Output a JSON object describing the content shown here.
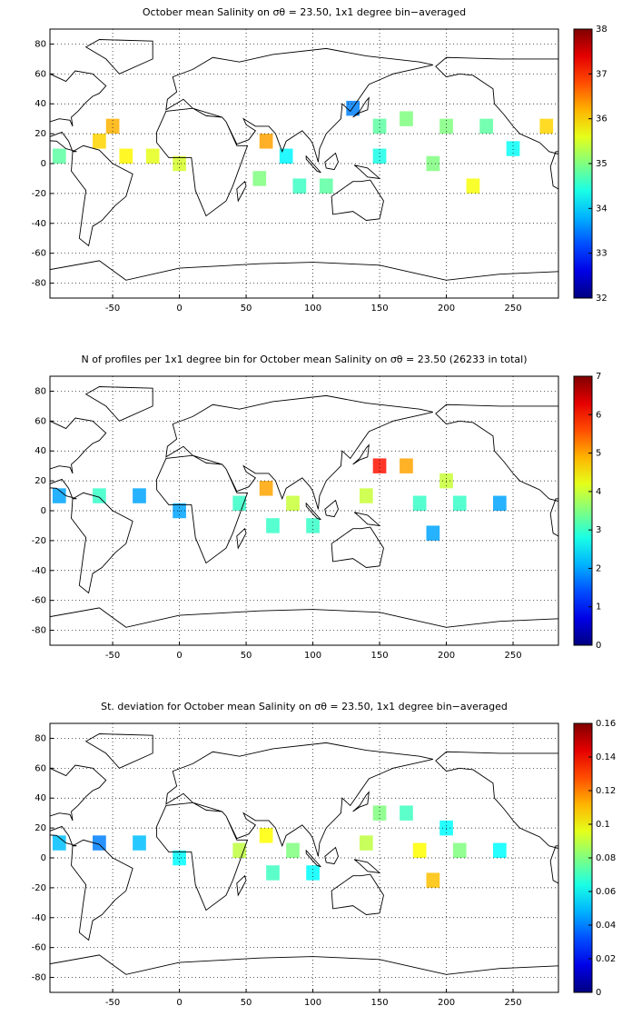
{
  "chart_data": [
    {
      "type": "heatmap",
      "title": "October mean Salinity on σθ = 23.50, 1x1 degree bin−averaged",
      "xlim": [
        -97,
        284
      ],
      "ylim": [
        -90,
        90
      ],
      "xticks": [
        -50,
        0,
        50,
        100,
        150,
        200,
        250
      ],
      "yticks": [
        -80,
        -60,
        -40,
        -20,
        0,
        20,
        40,
        60,
        80
      ],
      "grid": true,
      "colormap": "jet",
      "clim": [
        32,
        38
      ],
      "cticks": [
        32,
        33,
        34,
        35,
        36,
        37,
        38
      ],
      "x": [
        -90,
        -60,
        -50,
        -40,
        -20,
        0,
        65,
        80,
        60,
        90,
        110,
        150,
        170,
        200,
        230,
        150,
        190,
        220,
        250,
        130,
        275
      ],
      "y": [
        5,
        15,
        25,
        5,
        5,
        0,
        15,
        5,
        -10,
        -15,
        -15,
        25,
        30,
        25,
        25,
        5,
        0,
        -15,
        10,
        37,
        25
      ],
      "values": [
        34.8,
        36,
        36.2,
        35.8,
        35.6,
        35.5,
        36.3,
        34.2,
        35,
        34.6,
        34.8,
        34.8,
        35,
        35,
        34.8,
        34.4,
        35,
        35.7,
        34.3,
        33.5,
        36
      ]
    },
    {
      "type": "heatmap",
      "title": "N of profiles per 1x1 degree bin for October mean Salinity on σθ = 23.50 (26233 in total)",
      "xlim": [
        -97,
        284
      ],
      "ylim": [
        -90,
        90
      ],
      "xticks": [
        -50,
        0,
        50,
        100,
        150,
        200,
        250
      ],
      "yticks": [
        -80,
        -60,
        -40,
        -20,
        0,
        20,
        40,
        60,
        80
      ],
      "grid": true,
      "colormap": "jet",
      "clim": [
        0,
        7
      ],
      "cticks": [
        0,
        1,
        2,
        3,
        4,
        5,
        6,
        7
      ],
      "x": [
        -90,
        -60,
        -30,
        0,
        45,
        65,
        85,
        70,
        100,
        150,
        170,
        200,
        140,
        180,
        210,
        240,
        190
      ],
      "y": [
        10,
        10,
        10,
        0,
        5,
        15,
        5,
        -10,
        -10,
        30,
        30,
        20,
        10,
        5,
        5,
        5,
        -15
      ],
      "values": [
        2,
        3,
        2,
        2,
        3,
        5,
        4,
        3,
        3,
        6,
        5,
        4,
        4,
        3,
        3,
        2,
        2
      ]
    },
    {
      "type": "heatmap",
      "title": "St. deviation for October mean Salinity on σθ = 23.50, 1x1 degree bin−averaged",
      "xlim": [
        -97,
        284
      ],
      "ylim": [
        -90,
        90
      ],
      "xticks": [
        -50,
        0,
        50,
        100,
        150,
        200,
        250
      ],
      "yticks": [
        -80,
        -60,
        -40,
        -20,
        0,
        20,
        40,
        60,
        80
      ],
      "grid": true,
      "colormap": "jet",
      "clim": [
        0,
        0.16
      ],
      "cticks": [
        0,
        0.02,
        0.04,
        0.06,
        0.08,
        0.1,
        0.12,
        0.14,
        0.16
      ],
      "x": [
        -90,
        -60,
        -30,
        0,
        45,
        65,
        85,
        70,
        100,
        150,
        170,
        200,
        140,
        180,
        210,
        240,
        190
      ],
      "y": [
        10,
        10,
        10,
        0,
        5,
        15,
        5,
        -10,
        -10,
        30,
        30,
        20,
        10,
        5,
        5,
        5,
        -15
      ],
      "values": [
        0.05,
        0.04,
        0.05,
        0.06,
        0.09,
        0.1,
        0.08,
        0.07,
        0.06,
        0.08,
        0.07,
        0.06,
        0.09,
        0.1,
        0.08,
        0.06,
        0.11
      ]
    }
  ]
}
